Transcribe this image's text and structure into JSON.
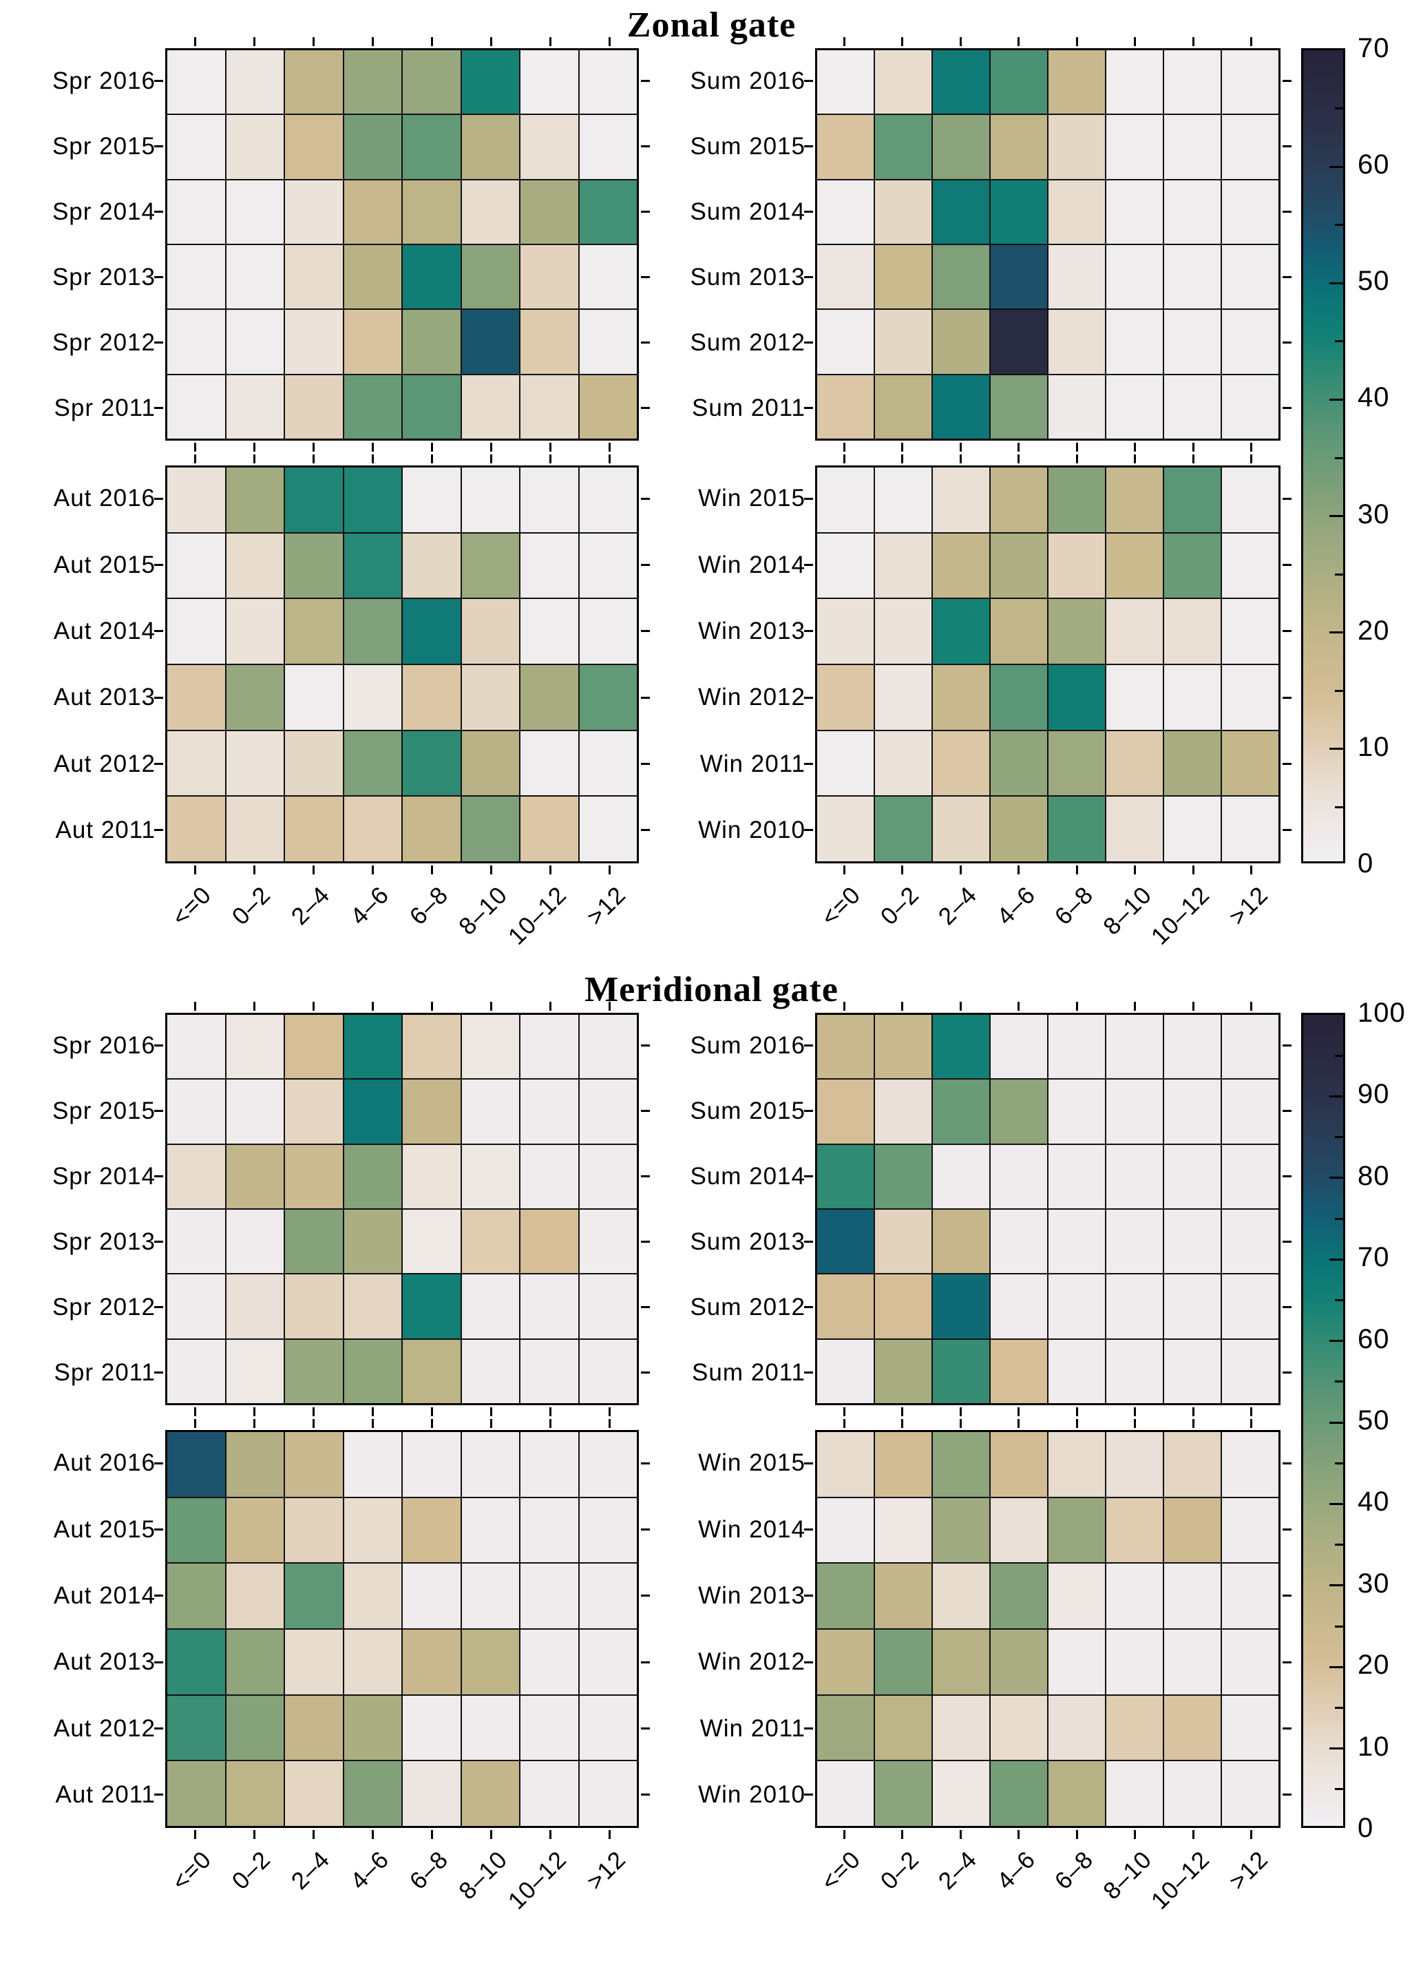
{
  "chart_data": {
    "type": "heatmap",
    "x_categories": [
      "<=0",
      "0–2",
      "2–4",
      "4–6",
      "6–8",
      "8–10",
      "10–12",
      ">12"
    ],
    "colormap_stops": [
      [
        0.0,
        "#f1eff4"
      ],
      [
        0.05,
        "#eee7e3"
      ],
      [
        0.1,
        "#e8dccf"
      ],
      [
        0.15,
        "#dfccb1"
      ],
      [
        0.2,
        "#d5be98"
      ],
      [
        0.25,
        "#cab98e"
      ],
      [
        0.3,
        "#bdb487"
      ],
      [
        0.35,
        "#abae82"
      ],
      [
        0.4,
        "#98a87e"
      ],
      [
        0.45,
        "#82a17a"
      ],
      [
        0.5,
        "#6a9b77"
      ],
      [
        0.55,
        "#4f9375"
      ],
      [
        0.6,
        "#308b74"
      ],
      [
        0.65,
        "#128076"
      ],
      [
        0.7,
        "#0b7377"
      ],
      [
        0.75,
        "#135e74"
      ],
      [
        0.8,
        "#224b66"
      ],
      [
        0.85,
        "#293e57"
      ],
      [
        0.9,
        "#2a324a"
      ],
      [
        0.95,
        "#292a41"
      ],
      [
        1.0,
        "#28223b"
      ]
    ],
    "figures": [
      {
        "title": "Zonal gate",
        "vmax": 70,
        "colorbar_ticks": [
          0,
          10,
          20,
          30,
          40,
          50,
          60,
          70
        ],
        "colorbar_minor_step": 5,
        "panels": [
          {
            "season": "Spring",
            "position": "top-left",
            "row_labels": [
              "Spr 2016",
              "Spr 2015",
              "Spr 2014",
              "Spr 2013",
              "Spr 2012",
              "Spr 2011"
            ],
            "values": [
              [
                1,
                4,
                20,
                28,
                28,
                45,
                1,
                1
              ],
              [
                1,
                5,
                15,
                33,
                36,
                22,
                6,
                1
              ],
              [
                1,
                1,
                5,
                18,
                21,
                7,
                25,
                40
              ],
              [
                1,
                1,
                7,
                22,
                46,
                30,
                9,
                1
              ],
              [
                1,
                1,
                5,
                13,
                28,
                54,
                11,
                1
              ],
              [
                1,
                4,
                9,
                35,
                37,
                7,
                7,
                18
              ]
            ]
          },
          {
            "season": "Summer",
            "position": "top-right",
            "row_labels": [
              "Sum 2016",
              "Sum 2015",
              "Sum 2014",
              "Sum 2013",
              "Sum 2012",
              "Sum 2011"
            ],
            "values": [
              [
                1,
                7,
                47,
                39,
                18,
                1,
                1,
                1
              ],
              [
                13,
                36,
                30,
                20,
                8,
                1,
                1,
                1
              ],
              [
                1,
                8,
                47,
                46,
                7,
                1,
                1,
                1
              ],
              [
                4,
                17,
                32,
                55,
                4,
                1,
                1,
                1
              ],
              [
                1,
                8,
                23,
                66,
                6,
                1,
                1,
                1
              ],
              [
                12,
                21,
                48,
                32,
                2,
                1,
                1,
                1
              ]
            ]
          },
          {
            "season": "Autumn",
            "position": "bottom-left",
            "row_labels": [
              "Aut 2016",
              "Aut 2015",
              "Aut 2014",
              "Aut 2013",
              "Aut 2012",
              "Aut 2011"
            ],
            "values": [
              [
                5,
                26,
                44,
                44,
                1,
                1,
                1,
                1
              ],
              [
                1,
                7,
                29,
                43,
                8,
                27,
                1,
                1
              ],
              [
                1,
                5,
                21,
                32,
                47,
                9,
                1,
                1
              ],
              [
                12,
                28,
                1,
                3,
                12,
                8,
                25,
                36
              ],
              [
                6,
                5,
                8,
                32,
                42,
                22,
                1,
                1
              ],
              [
                12,
                7,
                13,
                10,
                18,
                32,
                12,
                1
              ]
            ]
          },
          {
            "season": "Winter",
            "position": "bottom-right",
            "row_labels": [
              "Win 2015",
              "Win 2014",
              "Win 2013",
              "Win 2012",
              "Win 2011",
              "Win 2010"
            ],
            "values": [
              [
                1,
                1,
                6,
                20,
                31,
                18,
                37,
                1
              ],
              [
                1,
                6,
                19,
                24,
                9,
                17,
                35,
                1
              ],
              [
                5,
                5,
                45,
                20,
                26,
                6,
                6,
                1
              ],
              [
                12,
                4,
                18,
                37,
                46,
                1,
                1,
                1
              ],
              [
                1,
                5,
                12,
                29,
                27,
                11,
                25,
                19
              ],
              [
                5,
                36,
                8,
                23,
                39,
                6,
                1,
                1
              ]
            ]
          }
        ]
      },
      {
        "title": "Meridional gate",
        "vmax": 100,
        "colorbar_ticks": [
          0,
          10,
          20,
          30,
          40,
          50,
          60,
          70,
          80,
          90,
          100
        ],
        "colorbar_minor_step": 5,
        "panels": [
          {
            "season": "Spring",
            "position": "top-left",
            "row_labels": [
              "Spr 2016",
              "Spr 2015",
              "Spr 2014",
              "Spr 2013",
              "Spr 2012",
              "Spr 2011"
            ],
            "values": [
              [
                2,
                5,
                20,
                65,
                15,
                5,
                2,
                2
              ],
              [
                2,
                2,
                12,
                68,
                27,
                2,
                2,
                2
              ],
              [
                10,
                28,
                24,
                44,
                7,
                5,
                2,
                2
              ],
              [
                2,
                2,
                44,
                35,
                4,
                15,
                20,
                2
              ],
              [
                2,
                8,
                13,
                12,
                65,
                2,
                2,
                2
              ],
              [
                2,
                4,
                40,
                42,
                30,
                2,
                2,
                2
              ]
            ]
          },
          {
            "season": "Summer",
            "position": "top-right",
            "row_labels": [
              "Sum 2016",
              "Sum 2015",
              "Sum 2014",
              "Sum 2013",
              "Sum 2012",
              "Sum 2011"
            ],
            "values": [
              [
                25,
                25,
                65,
                2,
                2,
                2,
                2,
                2
              ],
              [
                20,
                8,
                50,
                42,
                2,
                2,
                2,
                2
              ],
              [
                60,
                50,
                2,
                2,
                2,
                2,
                2,
                2
              ],
              [
                75,
                13,
                27,
                2,
                2,
                2,
                2,
                2
              ],
              [
                21,
                20,
                72,
                2,
                2,
                2,
                2,
                2
              ],
              [
                2,
                36,
                59,
                20,
                2,
                2,
                2,
                2
              ]
            ]
          },
          {
            "season": "Autumn",
            "position": "bottom-left",
            "row_labels": [
              "Aut 2016",
              "Aut 2015",
              "Aut 2014",
              "Aut 2013",
              "Aut 2012",
              "Aut 2011"
            ],
            "values": [
              [
                78,
                33,
                25,
                2,
                2,
                2,
                2,
                2
              ],
              [
                50,
                24,
                13,
                10,
                22,
                2,
                2,
                2
              ],
              [
                42,
                12,
                52,
                10,
                2,
                2,
                2,
                2
              ],
              [
                60,
                42,
                10,
                10,
                25,
                30,
                2,
                2
              ],
              [
                58,
                44,
                27,
                35,
                2,
                2,
                2,
                2
              ],
              [
                38,
                30,
                12,
                45,
                6,
                28,
                2,
                2
              ]
            ]
          },
          {
            "season": "Winter",
            "position": "bottom-right",
            "row_labels": [
              "Win 2015",
              "Win 2014",
              "Win 2013",
              "Win 2012",
              "Win 2011",
              "Win 2010"
            ],
            "values": [
              [
                10,
                22,
                42,
                22,
                10,
                8,
                12,
                2
              ],
              [
                2,
                5,
                38,
                8,
                40,
                15,
                23,
                2
              ],
              [
                43,
                28,
                10,
                45,
                5,
                2,
                2,
                2
              ],
              [
                28,
                47,
                32,
                35,
                2,
                2,
                2,
                2
              ],
              [
                38,
                30,
                8,
                10,
                8,
                15,
                18,
                2
              ],
              [
                2,
                43,
                5,
                48,
                32,
                2,
                2,
                2
              ]
            ]
          }
        ]
      }
    ]
  }
}
